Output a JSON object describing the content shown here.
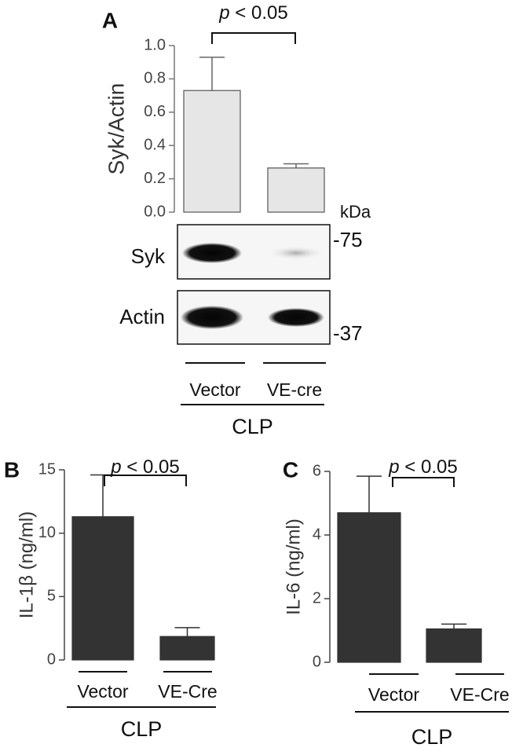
{
  "chart_data": [
    {
      "type": "bar",
      "panel_label": "A",
      "ylabel": "Syk/Actin",
      "annotation": "p < 0.05",
      "group_label": "CLP",
      "categories": [
        "Vector",
        "VE-cre"
      ],
      "values": [
        0.73,
        0.265
      ],
      "errors": [
        0.2,
        0.025
      ],
      "color": "#e6e6e6",
      "ylim": [
        0,
        1.0
      ],
      "yticks": [
        {
          "value": 0,
          "label": "0.0"
        },
        {
          "value": 0.2,
          "label": "0.2"
        },
        {
          "value": 0.4,
          "label": "0.4"
        },
        {
          "value": 0.6,
          "label": "0.6"
        },
        {
          "value": 0.8,
          "label": "0.8"
        },
        {
          "value": 1.0,
          "label": "1.0"
        }
      ],
      "blot": {
        "unit": "kDa",
        "rows": [
          {
            "label": "Syk",
            "marker": "-75"
          },
          {
            "label": "Actin",
            "marker": "-37"
          }
        ]
      }
    },
    {
      "type": "bar",
      "panel_label": "B",
      "ylabel": "IL-1β (ng/ml)",
      "annotation": "p < 0.05",
      "group_label": "CLP",
      "categories": [
        "Vector",
        "VE-Cre"
      ],
      "values": [
        11.3,
        1.85
      ],
      "errors": [
        3.3,
        0.7
      ],
      "color": "#333333",
      "ylim": [
        0,
        15
      ],
      "yticks": [
        0,
        5,
        10,
        15
      ]
    },
    {
      "type": "bar",
      "panel_label": "C",
      "ylabel": "IL-6 (ng/ml)",
      "annotation": "p < 0.05",
      "group_label": "CLP",
      "categories": [
        "Vector",
        "VE-Cre"
      ],
      "values": [
        4.7,
        1.05
      ],
      "errors": [
        1.15,
        0.15
      ],
      "color": "#333333",
      "ylim": [
        0,
        6
      ],
      "yticks": [
        0,
        2,
        4,
        6
      ]
    }
  ]
}
